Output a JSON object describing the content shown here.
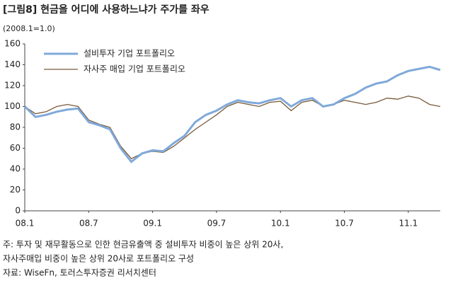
{
  "chart_data": {
    "type": "line",
    "title": "[그림8] 현금을 어디에 사용하느냐가 주가를 좌우",
    "subtitle": "(2008.1=1.0)",
    "categories": [
      "08.1",
      null,
      null,
      null,
      null,
      null,
      "08.7",
      null,
      null,
      null,
      null,
      null,
      "09.1",
      null,
      null,
      null,
      null,
      null,
      "09.7",
      null,
      null,
      null,
      null,
      null,
      "10.1",
      null,
      null,
      null,
      null,
      null,
      "10.7",
      null,
      null,
      null,
      null,
      null,
      "11.1",
      null,
      null,
      null
    ],
    "series": [
      {
        "name": "설비투자 기업 포트폴리오",
        "color": "#7fa9d9",
        "values": [
          100,
          90,
          92,
          95,
          97,
          98,
          85,
          82,
          78,
          60,
          47,
          55,
          58,
          57,
          65,
          72,
          85,
          92,
          96,
          102,
          106,
          104,
          103,
          106,
          108,
          100,
          106,
          108,
          100,
          102,
          108,
          112,
          118,
          122,
          124,
          130,
          134,
          136,
          138,
          135
        ]
      },
      {
        "name": "자사주 매입 기업 포트폴리오",
        "color": "#7a5a3a",
        "values": [
          100,
          93,
          95,
          100,
          102,
          100,
          87,
          83,
          80,
          62,
          50,
          55,
          57,
          56,
          62,
          70,
          78,
          85,
          92,
          100,
          104,
          102,
          100,
          104,
          105,
          96,
          104,
          106,
          100,
          102,
          106,
          104,
          102,
          104,
          108,
          107,
          110,
          108,
          102,
          100
        ]
      }
    ],
    "ylim": [
      0,
      160
    ],
    "yticks": [
      0,
      20,
      40,
      60,
      80,
      100,
      120,
      140,
      160
    ],
    "legend": "upper-left",
    "notes": [
      "주: 투자 및 재무활동으로 인한 현금유출액 중 설비투자 비중이 높은 상위 20사,",
      "자사주매입 비중이 높은 상위 20사로 포트폴리오 구성",
      "자료: WiseFn, 토러스투자증권 리서치센터"
    ]
  }
}
